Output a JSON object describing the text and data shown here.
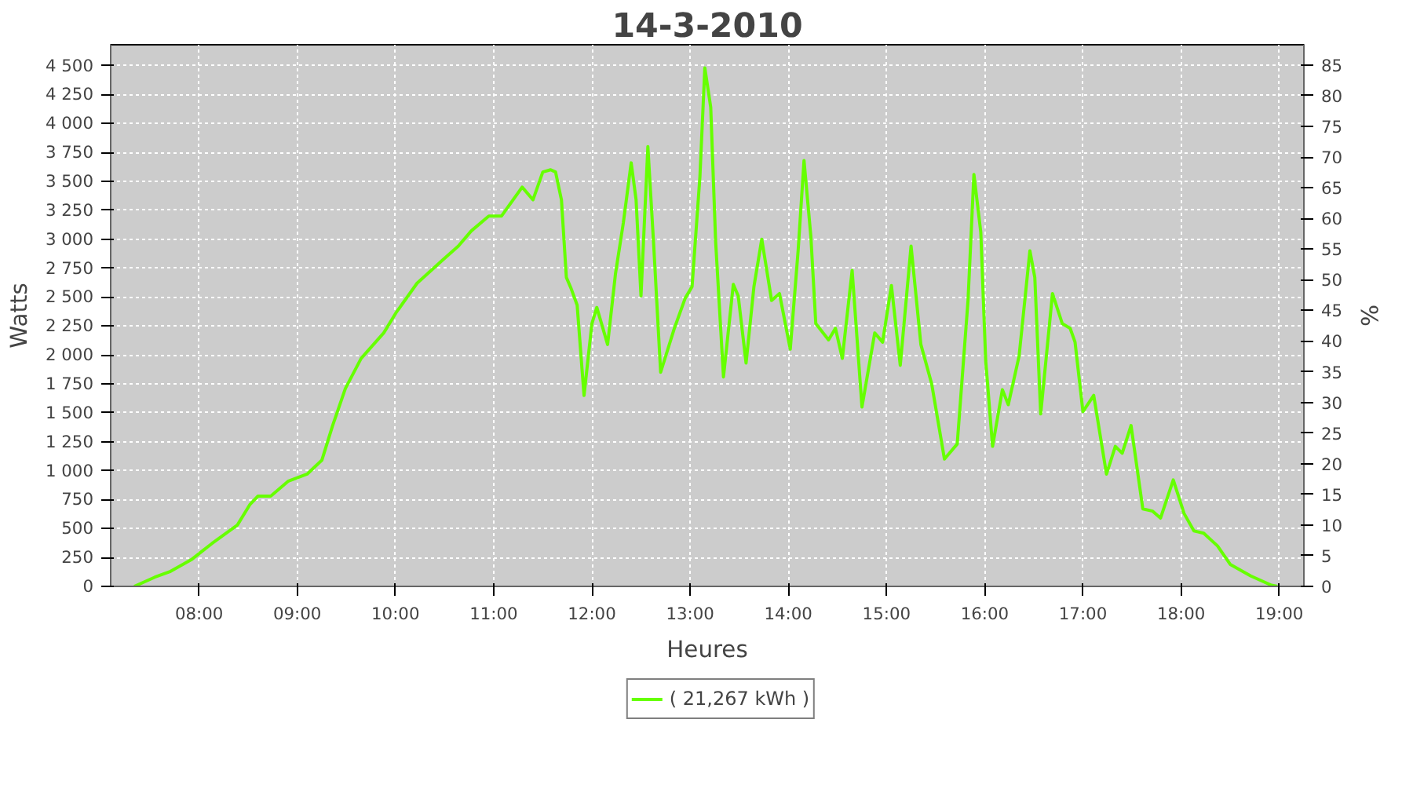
{
  "chart_data": {
    "type": "line",
    "title": "14-3-2010",
    "xlabel": "Heures",
    "ylabel": "Watts",
    "y2label": "%",
    "xlim": [
      7.1,
      19.25
    ],
    "xticks": [
      {
        "value": 8,
        "label": "08:00"
      },
      {
        "value": 9,
        "label": "09:00"
      },
      {
        "value": 10,
        "label": "10:00"
      },
      {
        "value": 11,
        "label": "11:00"
      },
      {
        "value": 12,
        "label": "12:00"
      },
      {
        "value": 13,
        "label": "13:00"
      },
      {
        "value": 14,
        "label": "14:00"
      },
      {
        "value": 15,
        "label": "15:00"
      },
      {
        "value": 16,
        "label": "16:00"
      },
      {
        "value": 17,
        "label": "17:00"
      },
      {
        "value": 18,
        "label": "18:00"
      },
      {
        "value": 19,
        "label": "19:00"
      }
    ],
    "ylim": [
      0,
      4680
    ],
    "yticks": [
      0,
      250,
      500,
      750,
      {
        "value": 1000,
        "label": "1 000"
      },
      {
        "value": 1250,
        "label": "1 250"
      },
      {
        "value": 1500,
        "label": "1 500"
      },
      {
        "value": 1750,
        "label": "1 750"
      },
      {
        "value": 2000,
        "label": "2 000"
      },
      {
        "value": 2250,
        "label": "2 250"
      },
      {
        "value": 2500,
        "label": "2 500"
      },
      {
        "value": 2750,
        "label": "2 750"
      },
      {
        "value": 3000,
        "label": "3 000"
      },
      {
        "value": 3250,
        "label": "3 250"
      },
      {
        "value": 3500,
        "label": "3 500"
      },
      {
        "value": 3750,
        "label": "3 750"
      },
      {
        "value": 4000,
        "label": "4 000"
      },
      {
        "value": 4250,
        "label": "4 250"
      },
      {
        "value": 4500,
        "label": "4 500"
      }
    ],
    "y2lim": [
      0,
      88.3
    ],
    "y2ticks": [
      0,
      5,
      10,
      15,
      20,
      25,
      30,
      35,
      40,
      45,
      50,
      55,
      60,
      65,
      70,
      75,
      80,
      85
    ],
    "grid": true,
    "legend": "bottom",
    "line_style": "solid",
    "series": [
      {
        "name": "( 21,267 kWh )",
        "color": "#66ff00",
        "x": [
          7.34,
          7.55,
          7.71,
          7.92,
          8.13,
          8.39,
          8.52,
          8.6,
          8.73,
          8.91,
          9.1,
          9.25,
          9.36,
          9.49,
          9.65,
          9.88,
          10.01,
          10.22,
          10.48,
          10.64,
          10.77,
          10.95,
          11.08,
          11.29,
          11.4,
          11.5,
          11.58,
          11.63,
          11.69,
          11.74,
          11.79,
          11.85,
          11.92,
          12.0,
          12.05,
          12.16,
          12.24,
          12.32,
          12.4,
          12.45,
          12.5,
          12.57,
          12.63,
          12.7,
          12.84,
          12.95,
          13.02,
          13.1,
          13.15,
          13.21,
          13.26,
          13.34,
          13.44,
          13.49,
          13.57,
          13.65,
          13.73,
          13.83,
          13.91,
          14.02,
          14.1,
          14.16,
          14.23,
          14.28,
          14.41,
          14.48,
          14.55,
          14.65,
          14.75,
          14.88,
          14.96,
          15.05,
          15.14,
          15.25,
          15.35,
          15.46,
          15.59,
          15.72,
          15.83,
          15.89,
          15.96,
          16.01,
          16.08,
          16.18,
          16.24,
          16.35,
          16.46,
          16.51,
          16.57,
          16.69,
          16.79,
          16.87,
          16.92,
          17.0,
          17.11,
          17.24,
          17.33,
          17.4,
          17.49,
          17.61,
          17.71,
          17.79,
          17.92,
          18.03,
          18.13,
          18.23,
          18.37,
          18.5,
          18.71,
          18.92,
          18.98
        ],
        "values": [
          0,
          80,
          130,
          230,
          370,
          530,
          710,
          780,
          780,
          910,
          970,
          1090,
          1390,
          1710,
          1970,
          2190,
          2370,
          2620,
          2820,
          2940,
          3070,
          3200,
          3200,
          3450,
          3340,
          3580,
          3600,
          3580,
          3340,
          2670,
          2570,
          2430,
          1650,
          2270,
          2410,
          2090,
          2700,
          3140,
          3660,
          3340,
          2510,
          3800,
          2940,
          1850,
          2230,
          2490,
          2590,
          3540,
          4480,
          4140,
          2980,
          1810,
          2610,
          2510,
          1930,
          2590,
          3000,
          2470,
          2530,
          2050,
          2900,
          3680,
          3020,
          2270,
          2130,
          2230,
          1970,
          2730,
          1550,
          2190,
          2110,
          2600,
          1910,
          2940,
          2090,
          1750,
          1100,
          1230,
          2470,
          3560,
          3060,
          1950,
          1210,
          1700,
          1570,
          1990,
          2900,
          2670,
          1490,
          2530,
          2270,
          2230,
          2110,
          1510,
          1650,
          970,
          1210,
          1150,
          1390,
          670,
          650,
          590,
          920,
          630,
          480,
          460,
          350,
          190,
          90,
          10,
          0
        ]
      }
    ]
  }
}
